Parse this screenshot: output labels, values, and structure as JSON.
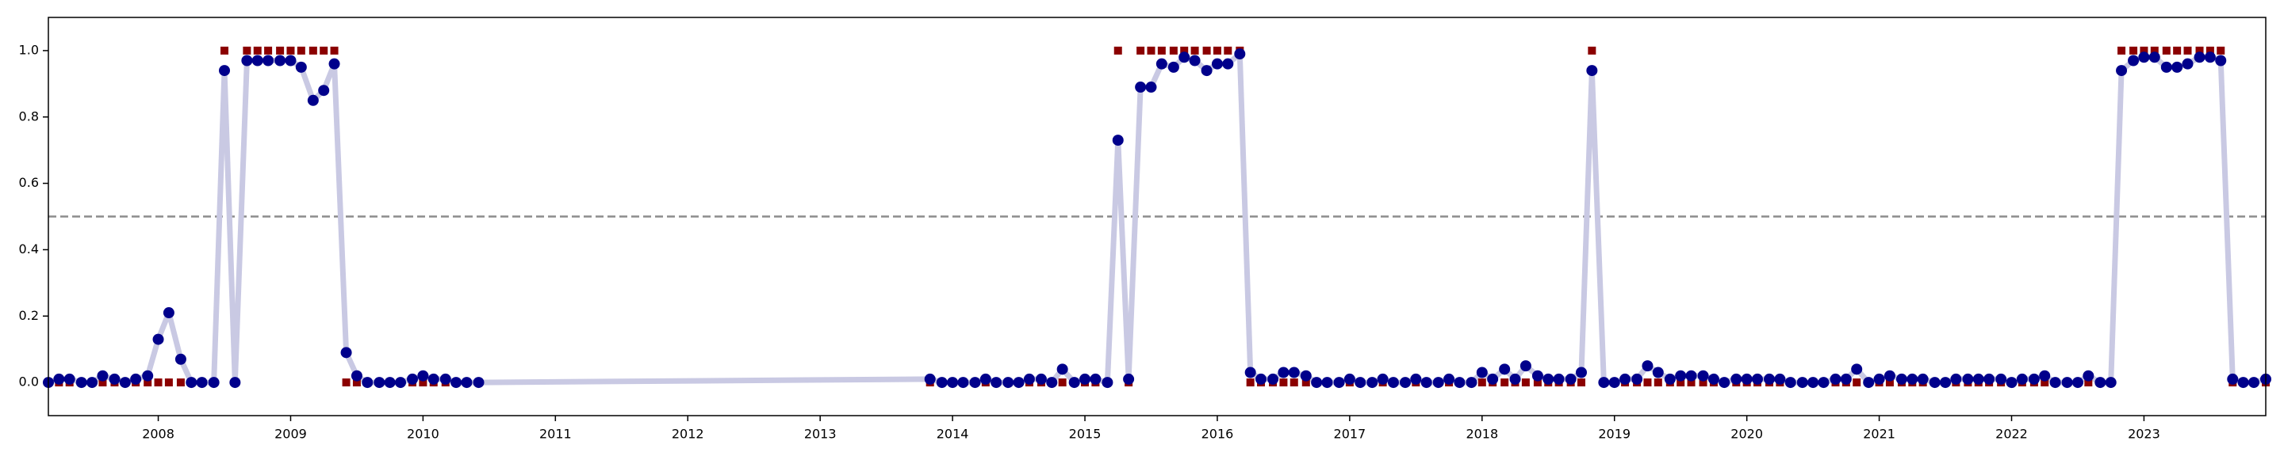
{
  "chart_data": {
    "type": "line",
    "x": [
      2007.17,
      2007.25,
      2007.33,
      2007.42,
      2007.5,
      2007.58,
      2007.67,
      2007.75,
      2007.83,
      2007.92,
      2008.0,
      2008.08,
      2008.17,
      2008.25,
      2008.33,
      2008.42,
      2008.5,
      2008.58,
      2008.67,
      2008.75,
      2008.83,
      2008.92,
      2009.0,
      2009.08,
      2009.17,
      2009.25,
      2009.33,
      2009.42,
      2009.5,
      2009.58,
      2009.67,
      2009.75,
      2009.83,
      2009.92,
      2010.0,
      2010.08,
      2010.17,
      2010.25,
      2010.33,
      2010.42,
      2013.83,
      2013.92,
      2014.0,
      2014.08,
      2014.17,
      2014.25,
      2014.33,
      2014.42,
      2014.5,
      2014.58,
      2014.67,
      2014.75,
      2014.83,
      2014.92,
      2015.0,
      2015.08,
      2015.17,
      2015.25,
      2015.33,
      2015.42,
      2015.5,
      2015.58,
      2015.67,
      2015.75,
      2015.83,
      2015.92,
      2016.0,
      2016.08,
      2016.17,
      2016.25,
      2016.33,
      2016.42,
      2016.5,
      2016.58,
      2016.67,
      2016.75,
      2016.83,
      2016.92,
      2017.0,
      2017.08,
      2017.17,
      2017.25,
      2017.33,
      2017.42,
      2017.5,
      2017.58,
      2017.67,
      2017.75,
      2017.83,
      2017.92,
      2018.0,
      2018.08,
      2018.17,
      2018.25,
      2018.33,
      2018.42,
      2018.5,
      2018.58,
      2018.67,
      2018.75,
      2018.83,
      2018.92,
      2019.0,
      2019.08,
      2019.17,
      2019.25,
      2019.33,
      2019.42,
      2019.5,
      2019.58,
      2019.67,
      2019.75,
      2019.83,
      2019.92,
      2020.0,
      2020.08,
      2020.17,
      2020.25,
      2020.33,
      2020.42,
      2020.5,
      2020.58,
      2020.67,
      2020.75,
      2020.83,
      2020.92,
      2021.0,
      2021.08,
      2021.17,
      2021.25,
      2021.33,
      2021.42,
      2021.5,
      2021.58,
      2021.67,
      2021.75,
      2021.83,
      2021.92,
      2022.0,
      2022.08,
      2022.17,
      2022.25,
      2022.33,
      2022.42,
      2022.5,
      2022.58,
      2022.67,
      2022.75,
      2022.83,
      2022.92,
      2023.0,
      2023.08,
      2023.17,
      2023.25,
      2023.33,
      2023.42,
      2023.5,
      2023.58,
      2023.67,
      2023.75,
      2023.83,
      2023.92
    ],
    "series": [
      {
        "color": "#00008b",
        "line_color": "#c9c9e3",
        "values": [
          0.0,
          0.01,
          0.01,
          0.0,
          0.0,
          0.02,
          0.01,
          0.0,
          0.01,
          0.02,
          0.13,
          0.21,
          0.07,
          0.0,
          0.0,
          0.0,
          0.94,
          0.0,
          0.97,
          0.97,
          0.97,
          0.97,
          0.97,
          0.95,
          0.85,
          0.88,
          0.96,
          0.09,
          0.02,
          0.0,
          0.0,
          0.0,
          0.0,
          0.01,
          0.02,
          0.01,
          0.01,
          0.0,
          0.0,
          0.0,
          0.01,
          0.0,
          0.0,
          0.0,
          0.0,
          0.01,
          0.0,
          0.0,
          0.0,
          0.01,
          0.01,
          0.0,
          0.04,
          0.0,
          0.01,
          0.01,
          0.0,
          0.73,
          0.01,
          0.89,
          0.89,
          0.96,
          0.95,
          0.98,
          0.97,
          0.94,
          0.96,
          0.96,
          0.99,
          0.03,
          0.01,
          0.01,
          0.03,
          0.03,
          0.02,
          0.0,
          0.0,
          0.0,
          0.01,
          0.0,
          0.0,
          0.01,
          0.0,
          0.0,
          0.01,
          0.0,
          0.0,
          0.01,
          0.0,
          0.0,
          0.03,
          0.01,
          0.04,
          0.01,
          0.05,
          0.02,
          0.01,
          0.01,
          0.01,
          0.03,
          0.94,
          0.0,
          0.0,
          0.01,
          0.01,
          0.05,
          0.03,
          0.01,
          0.02,
          0.02,
          0.02,
          0.01,
          0.0,
          0.01,
          0.01,
          0.01,
          0.01,
          0.01,
          0.0,
          0.0,
          0.0,
          0.0,
          0.01,
          0.01,
          0.04,
          0.0,
          0.01,
          0.02,
          0.01,
          0.01,
          0.01,
          0.0,
          0.0,
          0.01,
          0.01,
          0.01,
          0.01,
          0.01,
          0.0,
          0.01,
          0.01,
          0.02,
          0.0,
          0.0,
          0.0,
          0.02,
          0.0,
          0.0,
          0.94,
          0.97,
          0.98,
          0.98,
          0.95,
          0.95,
          0.96,
          0.98,
          0.98,
          0.97,
          0.01,
          0.0,
          0.0,
          0.01
        ]
      },
      {
        "color": "#8b0000",
        "marker": "square",
        "values": [
          0,
          0,
          0,
          0,
          0,
          0,
          0,
          0,
          0,
          0,
          0,
          0,
          0,
          0,
          0,
          0,
          1,
          0,
          1,
          1,
          1,
          1,
          1,
          1,
          1,
          1,
          1,
          0,
          0,
          0,
          0,
          0,
          0,
          0,
          0,
          0,
          0,
          0,
          0,
          0,
          0,
          0,
          0,
          0,
          0,
          0,
          0,
          0,
          0,
          0,
          0,
          0,
          0,
          0,
          0,
          0,
          0,
          1,
          0,
          1,
          1,
          1,
          1,
          1,
          1,
          1,
          1,
          1,
          1,
          0,
          0,
          0,
          0,
          0,
          0,
          0,
          0,
          0,
          0,
          0,
          0,
          0,
          0,
          0,
          0,
          0,
          0,
          0,
          0,
          0,
          0,
          0,
          0,
          0,
          0,
          0,
          0,
          0,
          0,
          0,
          1,
          0,
          0,
          0,
          0,
          0,
          0,
          0,
          0,
          0,
          0,
          0,
          0,
          0,
          0,
          0,
          0,
          0,
          0,
          0,
          0,
          0,
          0,
          0,
          0,
          0,
          0,
          0,
          0,
          0,
          0,
          0,
          0,
          0,
          0,
          0,
          0,
          0,
          0,
          0,
          0,
          0,
          0,
          0,
          0,
          0,
          0,
          0,
          1,
          1,
          1,
          1,
          1,
          1,
          1,
          1,
          1,
          1,
          0,
          0,
          0,
          0
        ]
      }
    ],
    "reference_line": 0.5,
    "xlim": [
      2007.17,
      2023.92
    ],
    "xticks": [
      2008,
      2009,
      2010,
      2011,
      2012,
      2013,
      2014,
      2015,
      2016,
      2017,
      2018,
      2019,
      2020,
      2021,
      2022,
      2023
    ],
    "ylim": [
      -0.1,
      1.1
    ],
    "yticks": [
      {
        "value": 0,
        "label": "0.0"
      },
      0.2,
      0.4,
      0.6,
      0.8,
      {
        "value": 1,
        "label": "1.0"
      }
    ]
  }
}
